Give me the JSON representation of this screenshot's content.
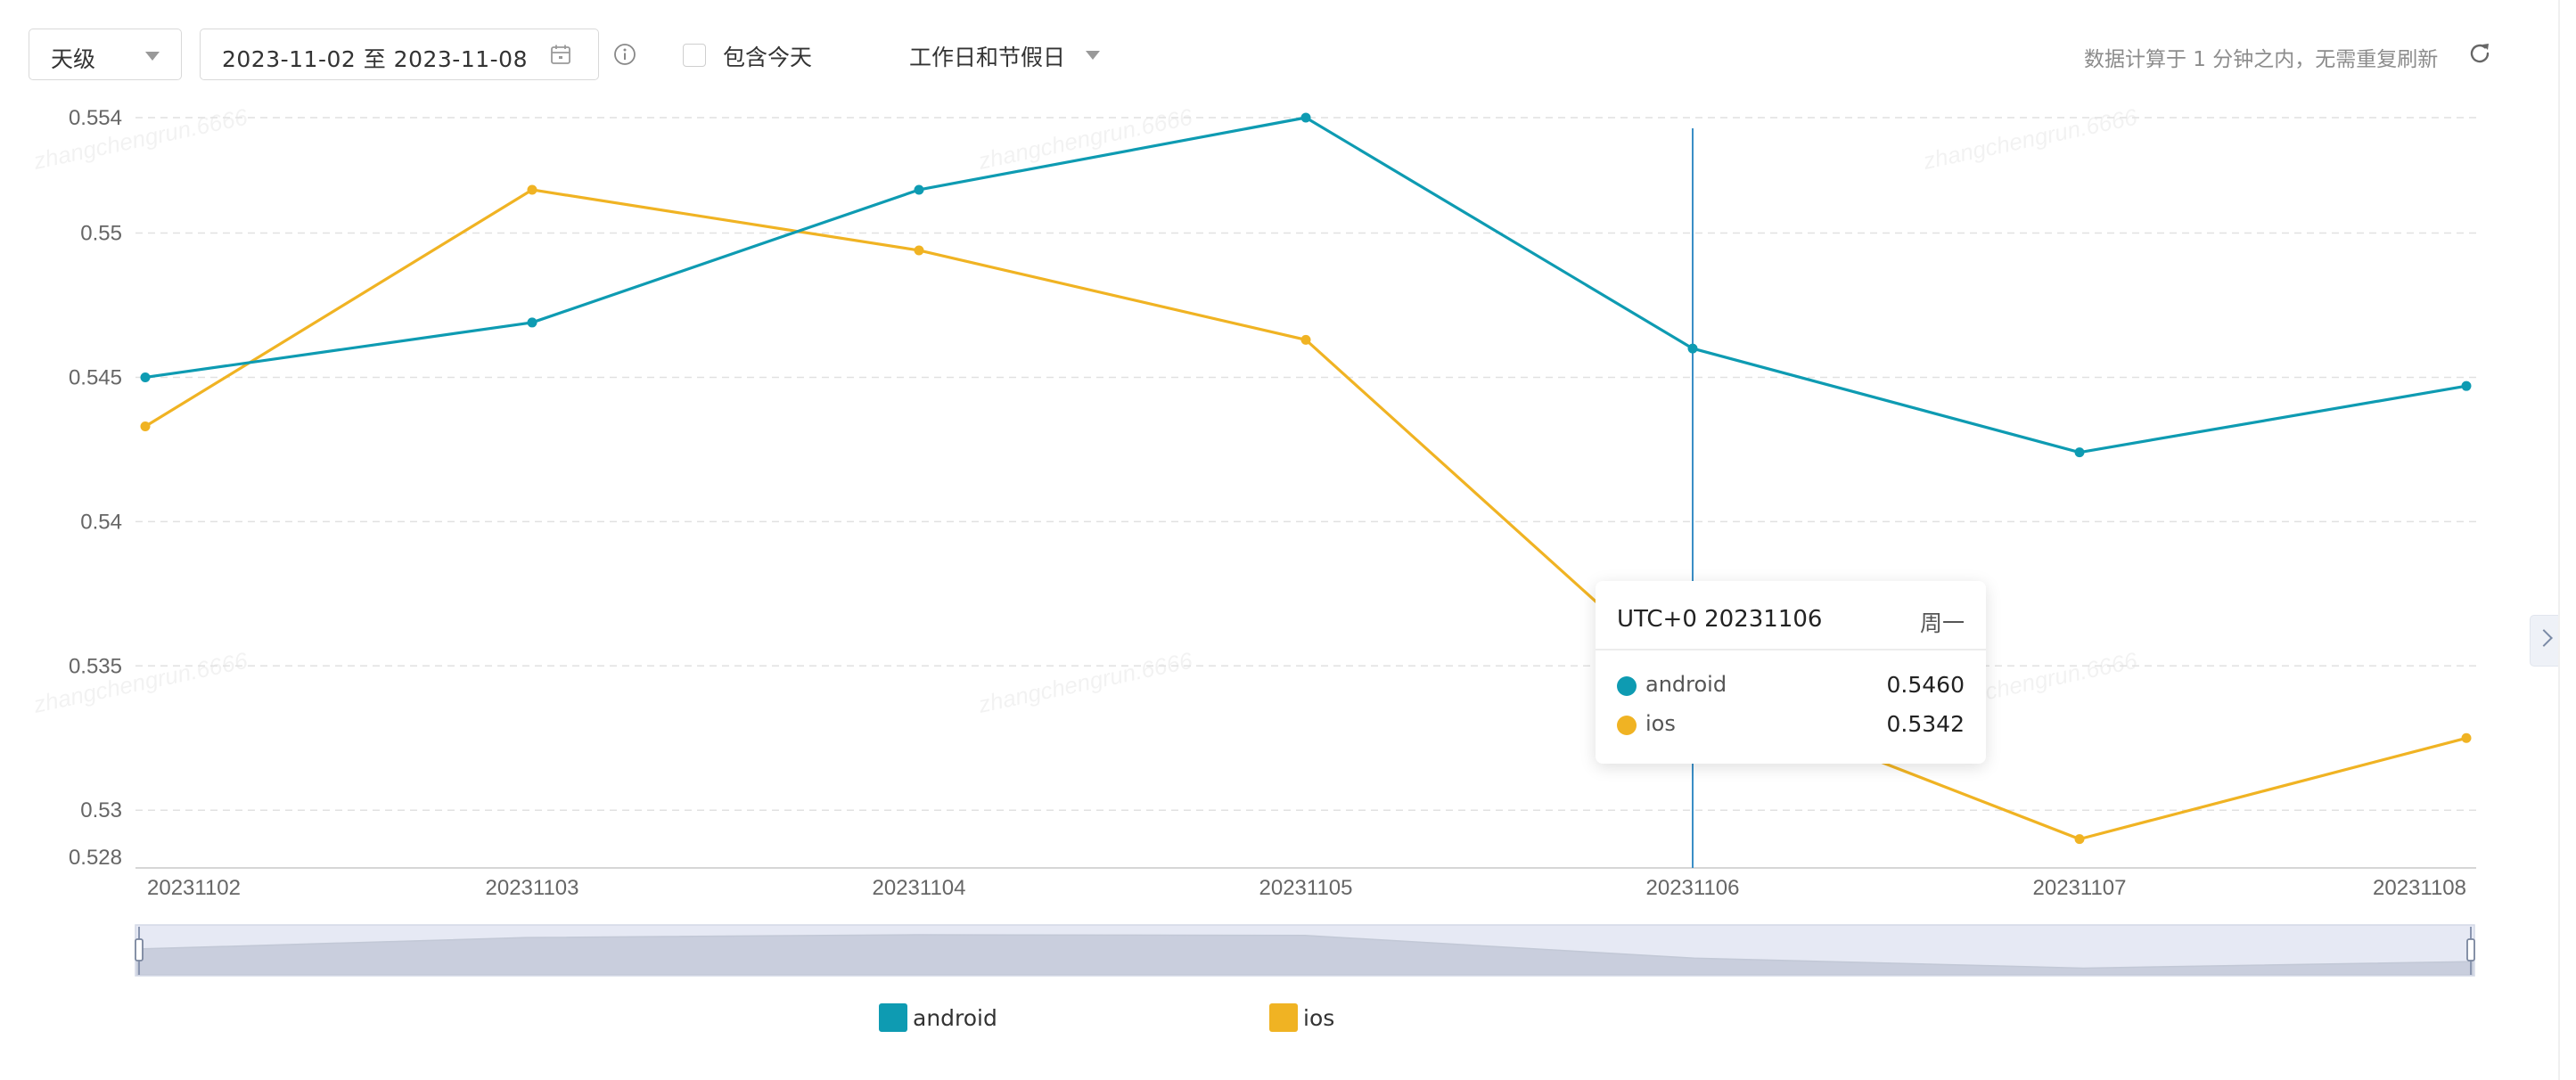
{
  "toolbar": {
    "granularity": "天级",
    "date_range": "2023-11-02 至 2023-11-08",
    "include_today_label": "包含今天",
    "include_today_checked": false,
    "day_type": "工作日和节假日",
    "refresh_note": "数据计算于 1 分钟之内，无需重复刷新"
  },
  "watermark": "zhangchengrun.6666",
  "tooltip": {
    "title": "UTC+0 20231106",
    "weekday": "周一",
    "rows": [
      {
        "name": "android",
        "value": "0.5460"
      },
      {
        "name": "ios",
        "value": "0.5342"
      }
    ]
  },
  "legend": [
    {
      "name": "android",
      "color": "#0e9bb2"
    },
    {
      "name": "ios",
      "color": "#f0b323"
    }
  ],
  "chart_data": {
    "type": "line",
    "x": [
      "20231102",
      "20231103",
      "20231104",
      "20231105",
      "20231106",
      "20231107",
      "20231108"
    ],
    "series": [
      {
        "name": "android",
        "color": "#0e9bb2",
        "values": [
          0.545,
          0.5469,
          0.5515,
          0.554,
          0.546,
          0.5424,
          0.5447
        ]
      },
      {
        "name": "ios",
        "color": "#f0b323",
        "values": [
          0.5433,
          0.5515,
          0.5494,
          0.5463,
          0.5342,
          0.529,
          0.5325
        ]
      }
    ],
    "y_ticks": [
      "0.528",
      "0.53",
      "0.535",
      "0.54",
      "0.545",
      "0.55",
      "0.554"
    ],
    "ylim": [
      0.528,
      0.554
    ],
    "grid": true,
    "legend_position": "bottom",
    "crosshair_x": "20231106",
    "title": "",
    "xlabel": "",
    "ylabel": ""
  }
}
